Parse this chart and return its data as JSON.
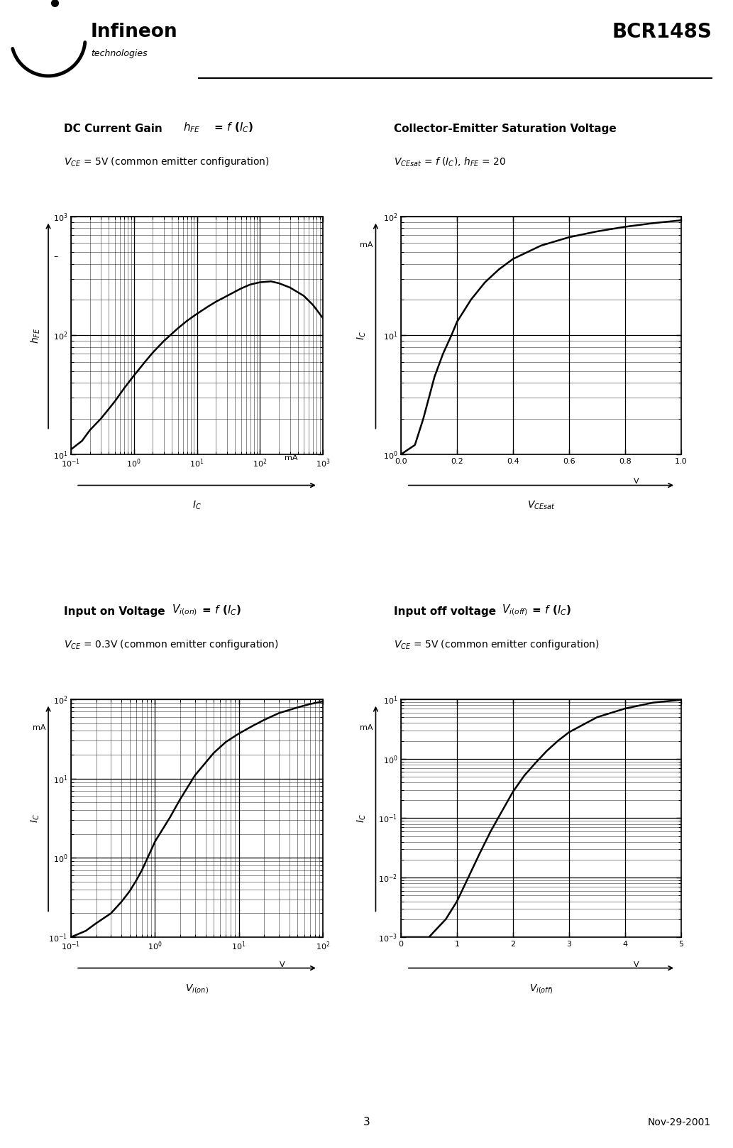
{
  "page_title": "BCR148S",
  "page_number": "3",
  "page_date": "Nov-29-2001",
  "plot1_curve_x": [
    0.1,
    0.15,
    0.2,
    0.3,
    0.5,
    0.7,
    1,
    1.5,
    2,
    3,
    5,
    7,
    10,
    15,
    20,
    30,
    50,
    70,
    100,
    150,
    200,
    300,
    500,
    700,
    1000
  ],
  "plot1_curve_y": [
    11,
    13,
    16,
    20,
    28,
    36,
    46,
    60,
    72,
    90,
    115,
    133,
    152,
    175,
    192,
    215,
    248,
    268,
    280,
    285,
    275,
    253,
    215,
    180,
    140
  ],
  "plot2_curve_x": [
    0.0,
    0.05,
    0.08,
    0.1,
    0.12,
    0.15,
    0.18,
    0.2,
    0.25,
    0.3,
    0.35,
    0.4,
    0.5,
    0.6,
    0.7,
    0.8,
    0.9,
    1.0
  ],
  "plot2_curve_y": [
    1.0,
    1.2,
    2.0,
    3.0,
    4.5,
    7.0,
    10,
    13,
    20,
    28,
    36,
    44,
    57,
    67,
    75,
    82,
    88,
    93
  ],
  "plot3_curve_x": [
    0.1,
    0.15,
    0.2,
    0.3,
    0.4,
    0.5,
    0.6,
    0.7,
    0.8,
    0.9,
    1.0,
    1.5,
    2.0,
    3.0,
    5.0,
    7.0,
    10,
    15,
    20,
    30,
    50,
    70,
    100
  ],
  "plot3_curve_y": [
    0.1,
    0.12,
    0.15,
    0.2,
    0.28,
    0.38,
    0.52,
    0.7,
    0.95,
    1.25,
    1.6,
    3.2,
    5.5,
    11,
    21,
    29,
    37,
    47,
    55,
    67,
    79,
    87,
    94
  ],
  "plot4_curve_x": [
    0.0,
    0.5,
    0.8,
    1.0,
    1.2,
    1.4,
    1.6,
    1.8,
    2.0,
    2.2,
    2.4,
    2.6,
    2.8,
    3.0,
    3.5,
    4.0,
    4.5,
    5.0
  ],
  "plot4_curve_y": [
    0.001,
    0.001,
    0.002,
    0.004,
    0.01,
    0.025,
    0.06,
    0.13,
    0.28,
    0.52,
    0.85,
    1.35,
    2.0,
    2.8,
    5.0,
    7.0,
    8.8,
    9.8
  ]
}
